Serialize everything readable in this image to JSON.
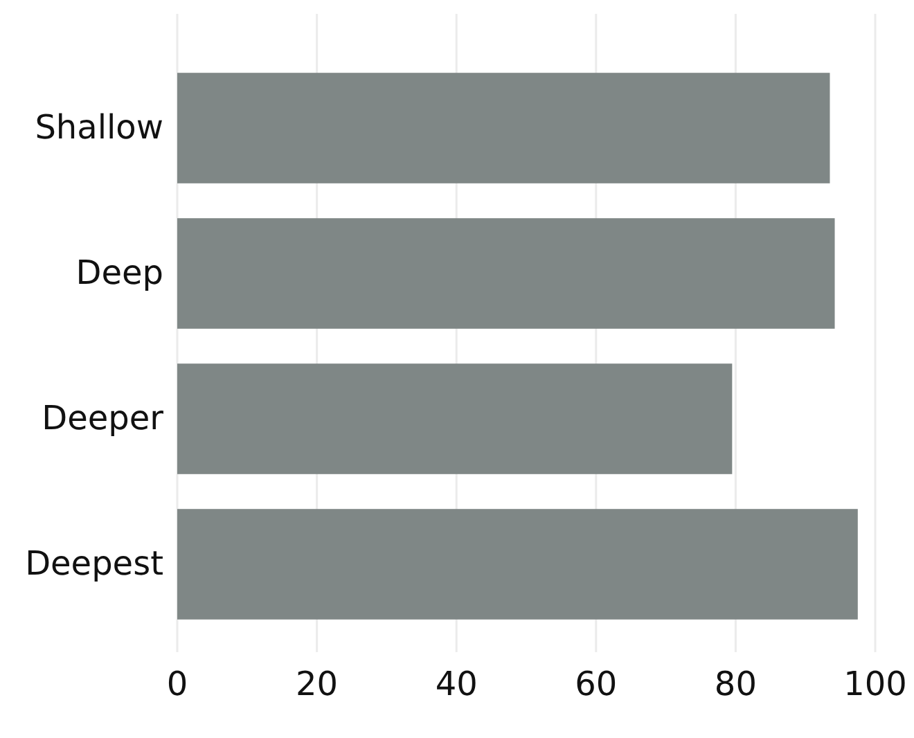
{
  "chart_data": {
    "type": "bar",
    "orientation": "horizontal",
    "categories": [
      "Shallow",
      "Deep",
      "Deeper",
      "Deepest"
    ],
    "values": [
      93.5,
      94.2,
      79.5,
      97.5
    ],
    "color": "#7f8786",
    "xlim": [
      0,
      100
    ],
    "xticks": [
      0,
      20,
      40,
      60,
      80,
      100
    ],
    "grid": "x"
  }
}
